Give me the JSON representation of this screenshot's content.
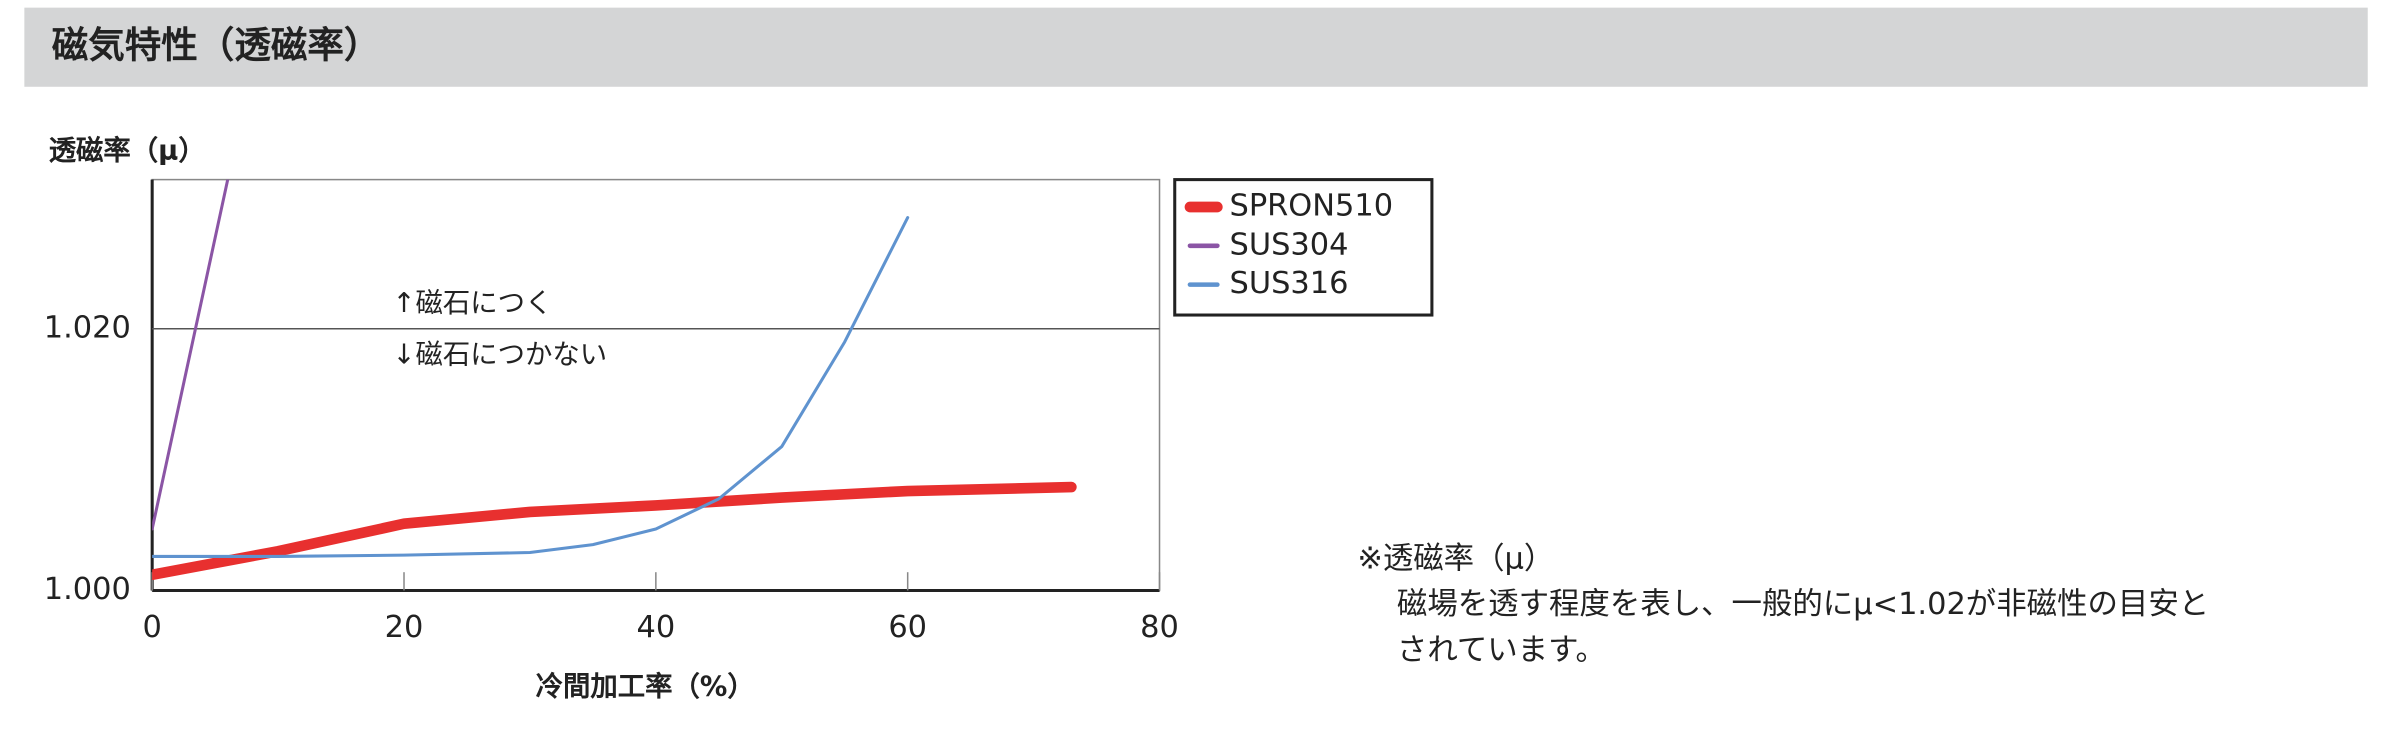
{
  "header": {
    "title": "磁気特性（透磁率）"
  },
  "chart_data": {
    "type": "line",
    "y_label": "透磁率（μ）",
    "x_label": "冷間加工率（%）",
    "xlim": [
      0,
      80
    ],
    "xticks": [
      0,
      20,
      40,
      60,
      80
    ],
    "ylim": [
      1.0,
      1.0314
    ],
    "yticks": [
      {
        "value": 1.0,
        "label": "1.000"
      },
      {
        "value": 1.02,
        "label": "1.020"
      }
    ],
    "grid": true,
    "annotations": [
      "↑磁石につく",
      "↓磁石につかない"
    ],
    "legend": "top-right-outside",
    "series": [
      {
        "name": "SPRON510",
        "color": "#e8302f",
        "x": [
          0,
          10,
          20,
          30,
          40,
          50,
          60,
          73
        ],
        "values": [
          1.0012,
          1.003,
          1.0051,
          1.006,
          1.0065,
          1.0071,
          1.0076,
          1.0079
        ]
      },
      {
        "name": "SUS304",
        "color": "#8b55a5",
        "x": [
          0,
          6
        ],
        "values": [
          1.0047,
          1.0314
        ]
      },
      {
        "name": "SUS316",
        "color": "#5f93cf",
        "x": [
          0,
          10,
          20,
          30,
          35,
          40,
          45,
          50,
          55,
          60
        ],
        "values": [
          1.0026,
          1.0026,
          1.0027,
          1.0029,
          1.0035,
          1.0047,
          1.007,
          1.011,
          1.019,
          1.0285
        ]
      }
    ]
  },
  "note": {
    "lines": [
      "※透磁率（μ）",
      "磁場を透す程度を表し、一般的にμ<1.02が非磁性の目安と",
      "されています。"
    ]
  }
}
